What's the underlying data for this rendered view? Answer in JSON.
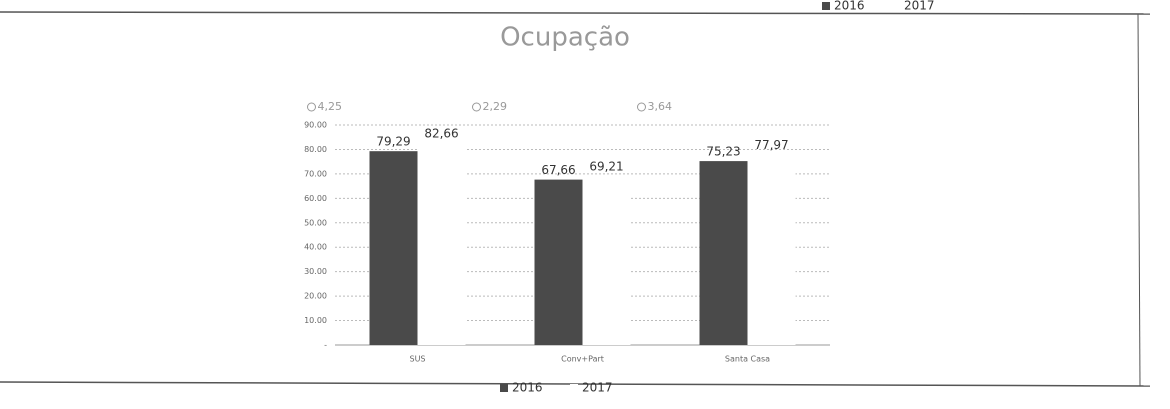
{
  "chart_data": {
    "type": "bar",
    "title": "Ocupação",
    "categories": [
      "SUS",
      "Conv+Part",
      "Santa Casa"
    ],
    "series": [
      {
        "name": "2016",
        "color": "#4a4a4a",
        "values": [
          79.29,
          67.66,
          75.23
        ],
        "value_labels": [
          "79,29",
          "67,66",
          "75,23"
        ]
      },
      {
        "name": "2017",
        "color": "#ffffff",
        "values": [
          82.66,
          69.21,
          77.97
        ],
        "value_labels": [
          "82,66",
          "69,21",
          "77,97"
        ]
      }
    ],
    "annotations": [
      "4,25",
      "2,29",
      "3,64"
    ],
    "ylim": [
      0,
      90
    ],
    "yticks": [
      {
        "value": 0,
        "label": "-"
      },
      {
        "value": 10,
        "label": "10.00"
      },
      {
        "value": 20,
        "label": "20.00"
      },
      {
        "value": 30,
        "label": "30.00"
      },
      {
        "value": 40,
        "label": "40.00"
      },
      {
        "value": 50,
        "label": "50.00"
      },
      {
        "value": 60,
        "label": "60.00"
      },
      {
        "value": 70,
        "label": "70.00"
      },
      {
        "value": 80,
        "label": "80.00"
      },
      {
        "value": 90,
        "label": "90.00"
      }
    ],
    "grid": true
  }
}
